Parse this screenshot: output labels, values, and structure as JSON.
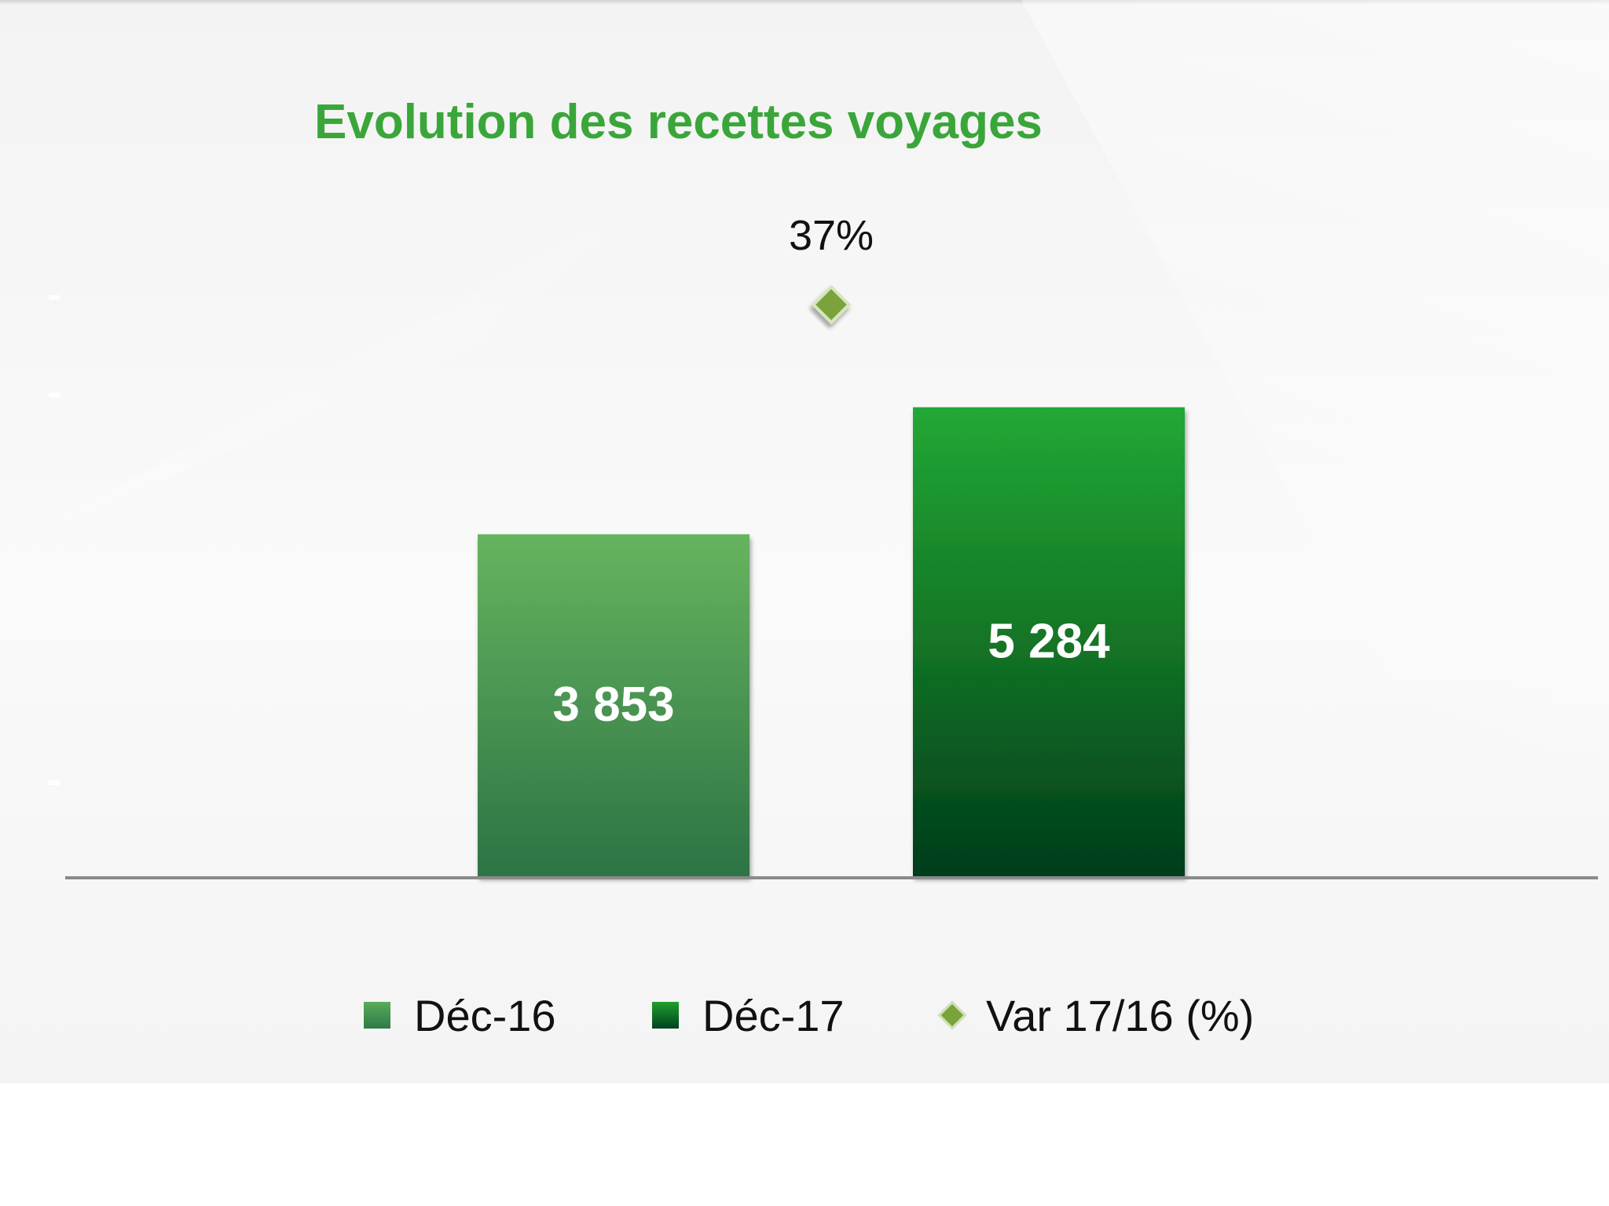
{
  "chart_data": {
    "type": "bar",
    "title": "Evolution des recettes voyages",
    "categories": [
      "Déc-16",
      "Déc-17"
    ],
    "series": [
      {
        "name": "Déc-16",
        "values": [
          3853,
          null
        ],
        "color": "#3f8f4a"
      },
      {
        "name": "Déc-17",
        "values": [
          null,
          5284
        ],
        "color": "#1f9a33"
      }
    ],
    "value_labels": [
      "3 853",
      "5 284"
    ],
    "variation": {
      "name": "Var 17/16 (%)",
      "value": 37,
      "label": "37%",
      "color": "#7aa33c"
    },
    "ylim": [
      0,
      6900
    ],
    "grid": false,
    "legend_position": "bottom"
  },
  "legend": {
    "items": [
      {
        "label": "Déc-16"
      },
      {
        "label": "Déc-17"
      },
      {
        "label": "Var 17/16 (%)"
      }
    ]
  }
}
